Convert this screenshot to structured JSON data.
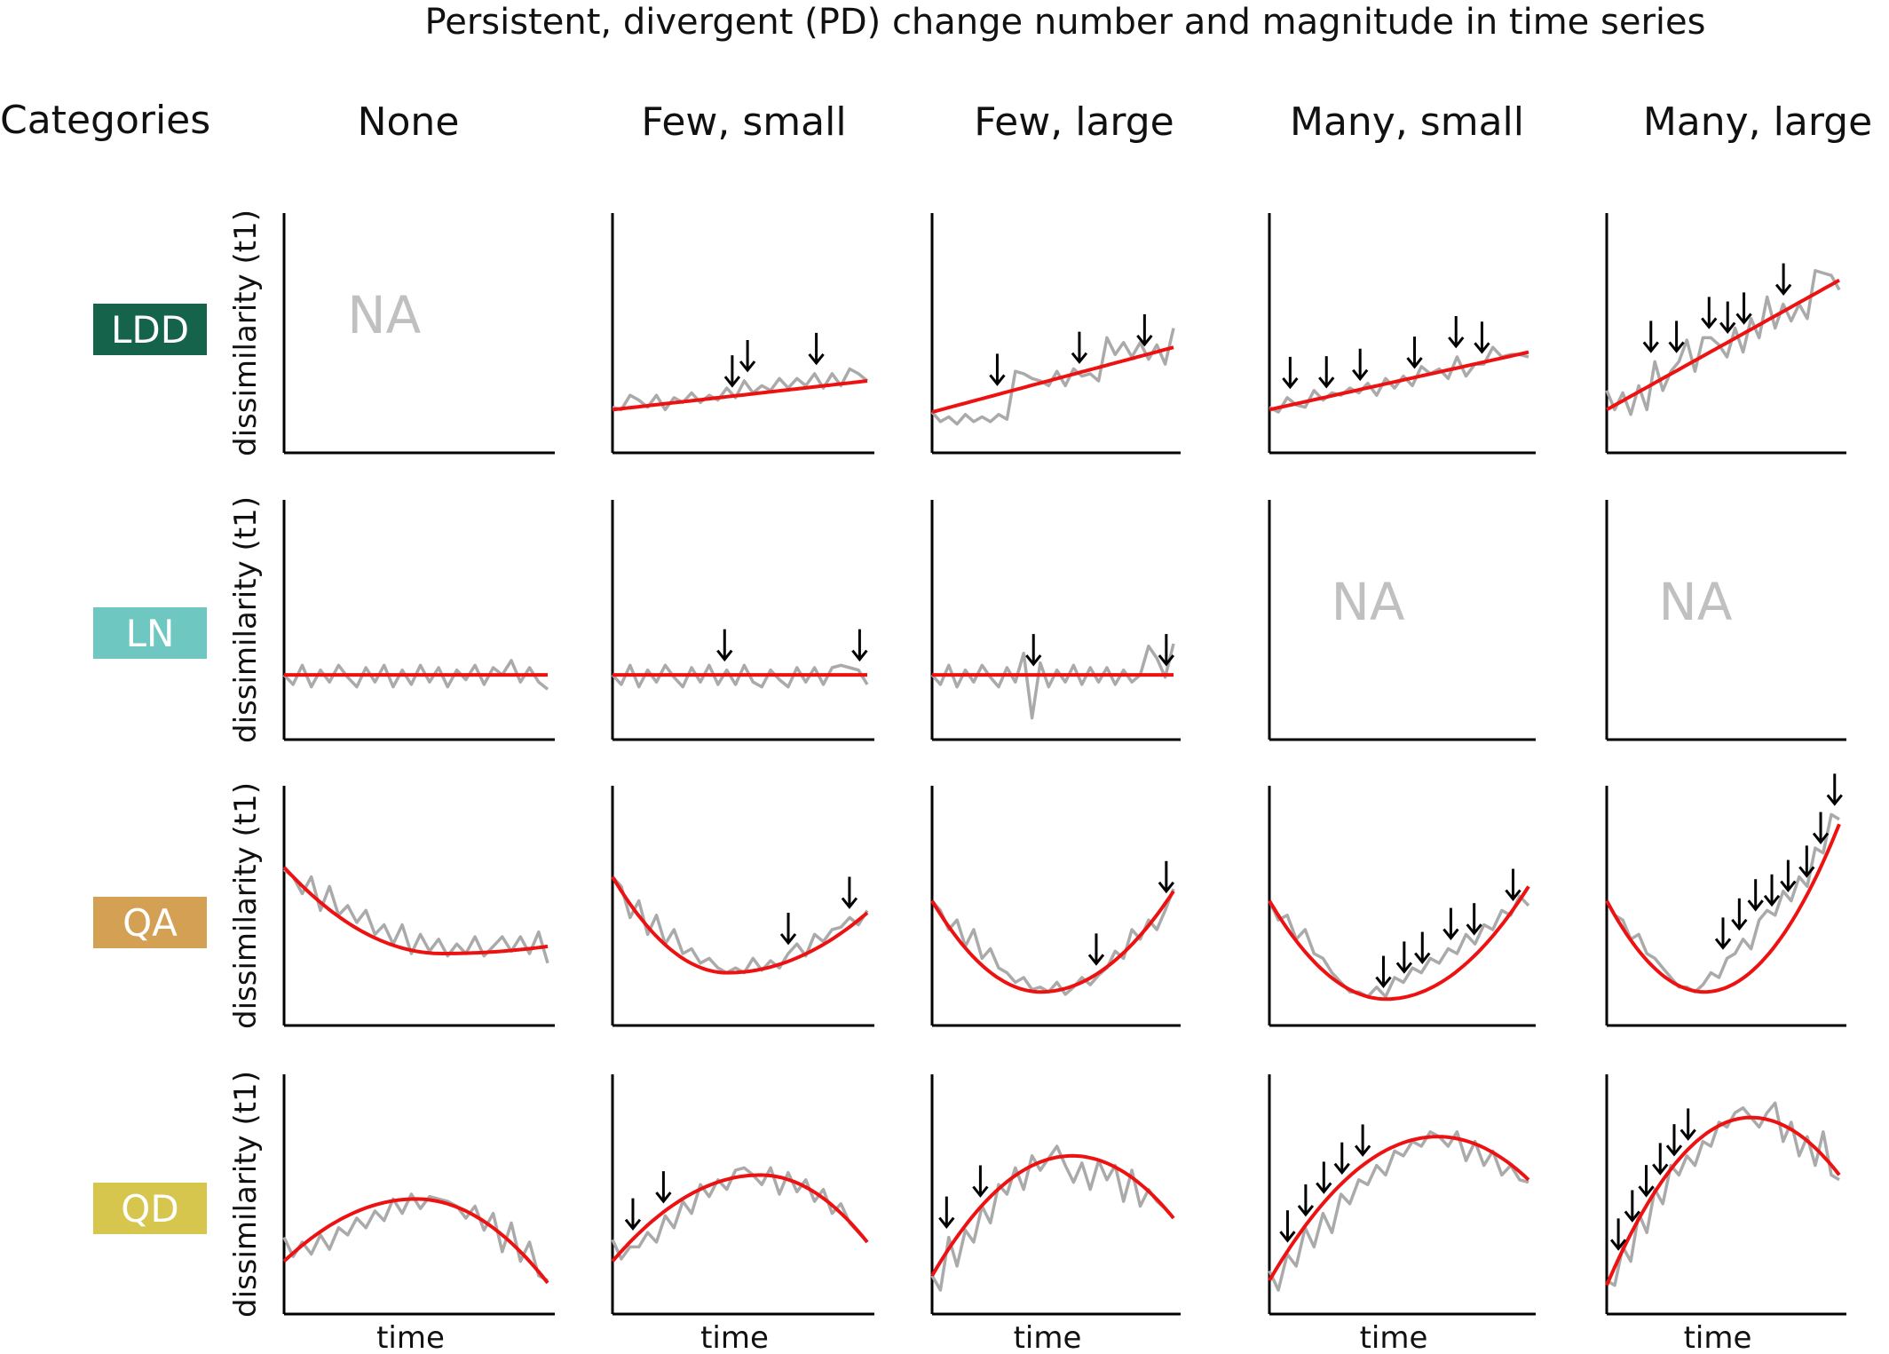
{
  "title": "Persistent, divergent (PD) change number and magnitude in time series",
  "categories_header": "Categories",
  "column_headers": [
    "None",
    "Few, small",
    "Few, large",
    "Many, small",
    "Many, large"
  ],
  "y_axis_label": "dissimilarity (t1)",
  "x_axis_label": "time",
  "na_label": "NA",
  "row_labels": [
    {
      "label": "LDD",
      "color": "#14634a",
      "text_color": "#ffffff"
    },
    {
      "label": "LN",
      "color": "#6ec8c1",
      "text_color": "#ffffff"
    },
    {
      "label": "QA",
      "color": "#d4a053",
      "text_color": "#ffffff"
    },
    {
      "label": "QD",
      "color": "#d7c64e",
      "text_color": "#ffffff"
    }
  ],
  "colors": {
    "observed": "#aaaaaa",
    "fit": "#ee1111",
    "axis": "#000000",
    "arrow": "#000000",
    "na": "#c0c0c0"
  },
  "chart_data": {
    "type": "line",
    "description_series": [
      "observed (gray)",
      "fitted trend (red)"
    ],
    "panels": [
      {
        "row": "LDD",
        "col": "None",
        "na": true
      },
      {
        "row": "LDD",
        "col": "Few, small",
        "fit": {
          "type": "linear",
          "start": 0.18,
          "end": 0.3
        },
        "observed": [
          0.19,
          0.18,
          0.24,
          0.22,
          0.19,
          0.24,
          0.18,
          0.23,
          0.21,
          0.25,
          0.21,
          0.24,
          0.22,
          0.27,
          0.23,
          0.3,
          0.25,
          0.28,
          0.26,
          0.31,
          0.27,
          0.31,
          0.28,
          0.33,
          0.27,
          0.33,
          0.28,
          0.35,
          0.33,
          0.3
        ],
        "arrows": [
          0.47,
          0.53,
          0.8
        ]
      },
      {
        "row": "LDD",
        "col": "Few, large",
        "fit": {
          "type": "linear",
          "start": 0.17,
          "end": 0.44
        },
        "observed": [
          0.17,
          0.13,
          0.15,
          0.12,
          0.16,
          0.13,
          0.15,
          0.13,
          0.16,
          0.14,
          0.34,
          0.33,
          0.31,
          0.3,
          0.28,
          0.34,
          0.28,
          0.35,
          0.32,
          0.33,
          0.3,
          0.48,
          0.41,
          0.46,
          0.4,
          0.46,
          0.39,
          0.45,
          0.37,
          0.52
        ],
        "arrows": [
          0.27,
          0.61,
          0.88
        ]
      },
      {
        "row": "LDD",
        "col": "Many, small",
        "fit": {
          "type": "linear",
          "start": 0.18,
          "end": 0.42
        },
        "observed": [
          0.19,
          0.17,
          0.23,
          0.2,
          0.19,
          0.26,
          0.22,
          0.25,
          0.24,
          0.27,
          0.25,
          0.29,
          0.24,
          0.31,
          0.27,
          0.32,
          0.28,
          0.36,
          0.33,
          0.35,
          0.31,
          0.4,
          0.32,
          0.37,
          0.37,
          0.44,
          0.4,
          0.41,
          0.41,
          0.4
        ],
        "arrows": [
          0.08,
          0.22,
          0.35,
          0.56,
          0.72,
          0.82
        ]
      },
      {
        "row": "LDD",
        "col": "Many, large",
        "fit": {
          "type": "linear",
          "start": 0.18,
          "end": 0.72
        },
        "observed": [
          0.26,
          0.18,
          0.25,
          0.16,
          0.28,
          0.18,
          0.38,
          0.26,
          0.34,
          0.38,
          0.47,
          0.34,
          0.48,
          0.48,
          0.45,
          0.4,
          0.52,
          0.42,
          0.56,
          0.48,
          0.65,
          0.52,
          0.62,
          0.55,
          0.62,
          0.56,
          0.76,
          0.75,
          0.74,
          0.68
        ],
        "arrows": [
          0.19,
          0.3,
          0.44,
          0.52,
          0.59,
          0.76
        ]
      },
      {
        "row": "LN",
        "col": "None",
        "fit": {
          "type": "linear",
          "start": 0.27,
          "end": 0.27
        },
        "observed": [
          0.27,
          0.23,
          0.31,
          0.22,
          0.29,
          0.24,
          0.31,
          0.26,
          0.22,
          0.3,
          0.24,
          0.31,
          0.22,
          0.29,
          0.23,
          0.31,
          0.24,
          0.3,
          0.22,
          0.29,
          0.25,
          0.31,
          0.23,
          0.3,
          0.27,
          0.33,
          0.24,
          0.3,
          0.24,
          0.21
        ],
        "arrows": []
      },
      {
        "row": "LN",
        "col": "Few, small",
        "fit": {
          "type": "linear",
          "start": 0.27,
          "end": 0.27
        },
        "observed": [
          0.27,
          0.23,
          0.31,
          0.22,
          0.29,
          0.24,
          0.31,
          0.26,
          0.22,
          0.3,
          0.24,
          0.31,
          0.23,
          0.29,
          0.23,
          0.31,
          0.24,
          0.22,
          0.29,
          0.25,
          0.22,
          0.3,
          0.24,
          0.3,
          0.23,
          0.3,
          0.31,
          0.3,
          0.29,
          0.23
        ],
        "arrows": [
          0.44,
          0.97
        ]
      },
      {
        "row": "LN",
        "col": "Few, large",
        "fit": {
          "type": "linear",
          "start": 0.27,
          "end": 0.27
        },
        "observed": [
          0.27,
          0.23,
          0.31,
          0.22,
          0.29,
          0.24,
          0.31,
          0.26,
          0.22,
          0.3,
          0.24,
          0.36,
          0.09,
          0.32,
          0.22,
          0.29,
          0.24,
          0.31,
          0.23,
          0.3,
          0.24,
          0.3,
          0.23,
          0.29,
          0.24,
          0.27,
          0.39,
          0.34,
          0.26,
          0.4
        ],
        "arrows": [
          0.42,
          0.97
        ]
      },
      {
        "row": "LN",
        "col": "Many, small",
        "na": true
      },
      {
        "row": "LN",
        "col": "Many, large",
        "na": true
      },
      {
        "row": "QA",
        "col": "None",
        "fit": {
          "type": "quadratic",
          "start": 0.66,
          "vertex_x": 0.6,
          "vertex_y": 0.3,
          "end": 0.33
        },
        "observed": [
          0.65,
          0.62,
          0.55,
          0.62,
          0.48,
          0.58,
          0.46,
          0.5,
          0.43,
          0.48,
          0.38,
          0.42,
          0.34,
          0.42,
          0.3,
          0.38,
          0.31,
          0.36,
          0.29,
          0.34,
          0.3,
          0.37,
          0.29,
          0.33,
          0.37,
          0.31,
          0.37,
          0.3,
          0.39,
          0.26
        ],
        "arrows": []
      },
      {
        "row": "QA",
        "col": "Few, small",
        "fit": {
          "type": "quadratic",
          "start": 0.62,
          "vertex_x": 0.45,
          "vertex_y": 0.22,
          "end": 0.47
        },
        "observed": [
          0.62,
          0.58,
          0.45,
          0.52,
          0.38,
          0.46,
          0.34,
          0.4,
          0.3,
          0.32,
          0.26,
          0.28,
          0.24,
          0.22,
          0.24,
          0.22,
          0.28,
          0.23,
          0.27,
          0.24,
          0.3,
          0.34,
          0.29,
          0.38,
          0.35,
          0.4,
          0.41,
          0.45,
          0.42,
          0.48
        ],
        "arrows": [
          0.69,
          0.93
        ]
      },
      {
        "row": "QA",
        "col": "Few, large",
        "fit": {
          "type": "quadratic",
          "start": 0.52,
          "vertex_x": 0.45,
          "vertex_y": 0.14,
          "end": 0.56
        },
        "observed": [
          0.52,
          0.48,
          0.4,
          0.44,
          0.33,
          0.4,
          0.28,
          0.32,
          0.24,
          0.22,
          0.18,
          0.2,
          0.15,
          0.16,
          0.14,
          0.18,
          0.13,
          0.16,
          0.2,
          0.17,
          0.21,
          0.24,
          0.31,
          0.28,
          0.4,
          0.36,
          0.44,
          0.4,
          0.48,
          0.57
        ],
        "arrows": [
          0.68,
          0.97
        ]
      },
      {
        "row": "QA",
        "col": "Many, small",
        "fit": {
          "type": "quadratic",
          "start": 0.52,
          "vertex_x": 0.45,
          "vertex_y": 0.11,
          "end": 0.58
        },
        "observed": [
          0.52,
          0.44,
          0.46,
          0.36,
          0.4,
          0.3,
          0.28,
          0.22,
          0.18,
          0.14,
          0.14,
          0.12,
          0.16,
          0.12,
          0.2,
          0.18,
          0.24,
          0.22,
          0.28,
          0.26,
          0.32,
          0.3,
          0.38,
          0.34,
          0.42,
          0.4,
          0.48,
          0.46,
          0.54,
          0.5
        ],
        "arrows": [
          0.44,
          0.52,
          0.59,
          0.7,
          0.79,
          0.94
        ]
      },
      {
        "row": "QA",
        "col": "Many, large",
        "fit": {
          "type": "quadratic",
          "start": 0.52,
          "vertex_x": 0.42,
          "vertex_y": 0.14,
          "end": 0.84
        },
        "observed": [
          0.52,
          0.46,
          0.44,
          0.36,
          0.38,
          0.3,
          0.28,
          0.24,
          0.2,
          0.16,
          0.16,
          0.14,
          0.17,
          0.22,
          0.2,
          0.28,
          0.3,
          0.36,
          0.32,
          0.44,
          0.48,
          0.46,
          0.56,
          0.52,
          0.62,
          0.58,
          0.74,
          0.72,
          0.88,
          0.86
        ],
        "arrows": [
          0.5,
          0.57,
          0.64,
          0.71,
          0.78,
          0.86,
          0.92,
          0.98
        ]
      },
      {
        "row": "QD",
        "col": "None",
        "fit": {
          "type": "quadratic",
          "start": 0.22,
          "vertex_x": 0.5,
          "vertex_y": 0.48,
          "end": 0.13
        },
        "observed": [
          0.32,
          0.24,
          0.3,
          0.25,
          0.33,
          0.27,
          0.36,
          0.33,
          0.4,
          0.36,
          0.43,
          0.39,
          0.48,
          0.42,
          0.5,
          0.44,
          0.49,
          0.48,
          0.47,
          0.45,
          0.4,
          0.45,
          0.35,
          0.42,
          0.26,
          0.38,
          0.22,
          0.3,
          0.16,
          0.14
        ],
        "arrows": []
      },
      {
        "row": "QD",
        "col": "Few, small",
        "fit": {
          "type": "quadratic",
          "start": 0.22,
          "vertex_x": 0.58,
          "vertex_y": 0.58,
          "end": 0.3
        },
        "observed": [
          0.31,
          0.23,
          0.28,
          0.28,
          0.34,
          0.3,
          0.41,
          0.36,
          0.47,
          0.42,
          0.54,
          0.49,
          0.56,
          0.52,
          0.6,
          0.61,
          0.58,
          0.54,
          0.61,
          0.5,
          0.59,
          0.51,
          0.56,
          0.47,
          0.52,
          0.42,
          0.46,
          0.38,
          0.34,
          0.3
        ],
        "arrows": [
          0.08,
          0.2
        ]
      },
      {
        "row": "QD",
        "col": "Few, large",
        "fit": {
          "type": "quadratic",
          "start": 0.16,
          "vertex_x": 0.58,
          "vertex_y": 0.66,
          "end": 0.4
        },
        "observed": [
          0.16,
          0.1,
          0.32,
          0.2,
          0.35,
          0.3,
          0.45,
          0.38,
          0.54,
          0.5,
          0.61,
          0.52,
          0.66,
          0.6,
          0.65,
          0.7,
          0.62,
          0.55,
          0.63,
          0.52,
          0.64,
          0.56,
          0.62,
          0.47,
          0.6,
          0.45,
          0.52,
          0.47,
          0.44,
          0.4
        ],
        "arrows": [
          0.06,
          0.2
        ]
      },
      {
        "row": "QD",
        "col": "Many, small",
        "fit": {
          "type": "quadratic",
          "start": 0.14,
          "vertex_x": 0.65,
          "vertex_y": 0.74,
          "end": 0.56
        },
        "observed": [
          0.18,
          0.1,
          0.25,
          0.2,
          0.36,
          0.28,
          0.42,
          0.34,
          0.5,
          0.46,
          0.56,
          0.54,
          0.62,
          0.58,
          0.68,
          0.66,
          0.72,
          0.7,
          0.76,
          0.74,
          0.7,
          0.76,
          0.64,
          0.72,
          0.62,
          0.68,
          0.58,
          0.62,
          0.56,
          0.55
        ],
        "arrows": [
          0.07,
          0.14,
          0.21,
          0.28,
          0.36
        ]
      },
      {
        "row": "QD",
        "col": "Many, large",
        "fit": {
          "type": "quadratic",
          "start": 0.12,
          "vertex_x": 0.62,
          "vertex_y": 0.82,
          "end": 0.58
        },
        "observed": [
          0.14,
          0.12,
          0.28,
          0.22,
          0.42,
          0.34,
          0.52,
          0.46,
          0.62,
          0.58,
          0.66,
          0.62,
          0.72,
          0.7,
          0.8,
          0.78,
          0.84,
          0.86,
          0.82,
          0.78,
          0.84,
          0.88,
          0.72,
          0.8,
          0.66,
          0.74,
          0.62,
          0.76,
          0.58,
          0.56
        ],
        "arrows": [
          0.05,
          0.11,
          0.17,
          0.23,
          0.29,
          0.35
        ]
      }
    ]
  }
}
